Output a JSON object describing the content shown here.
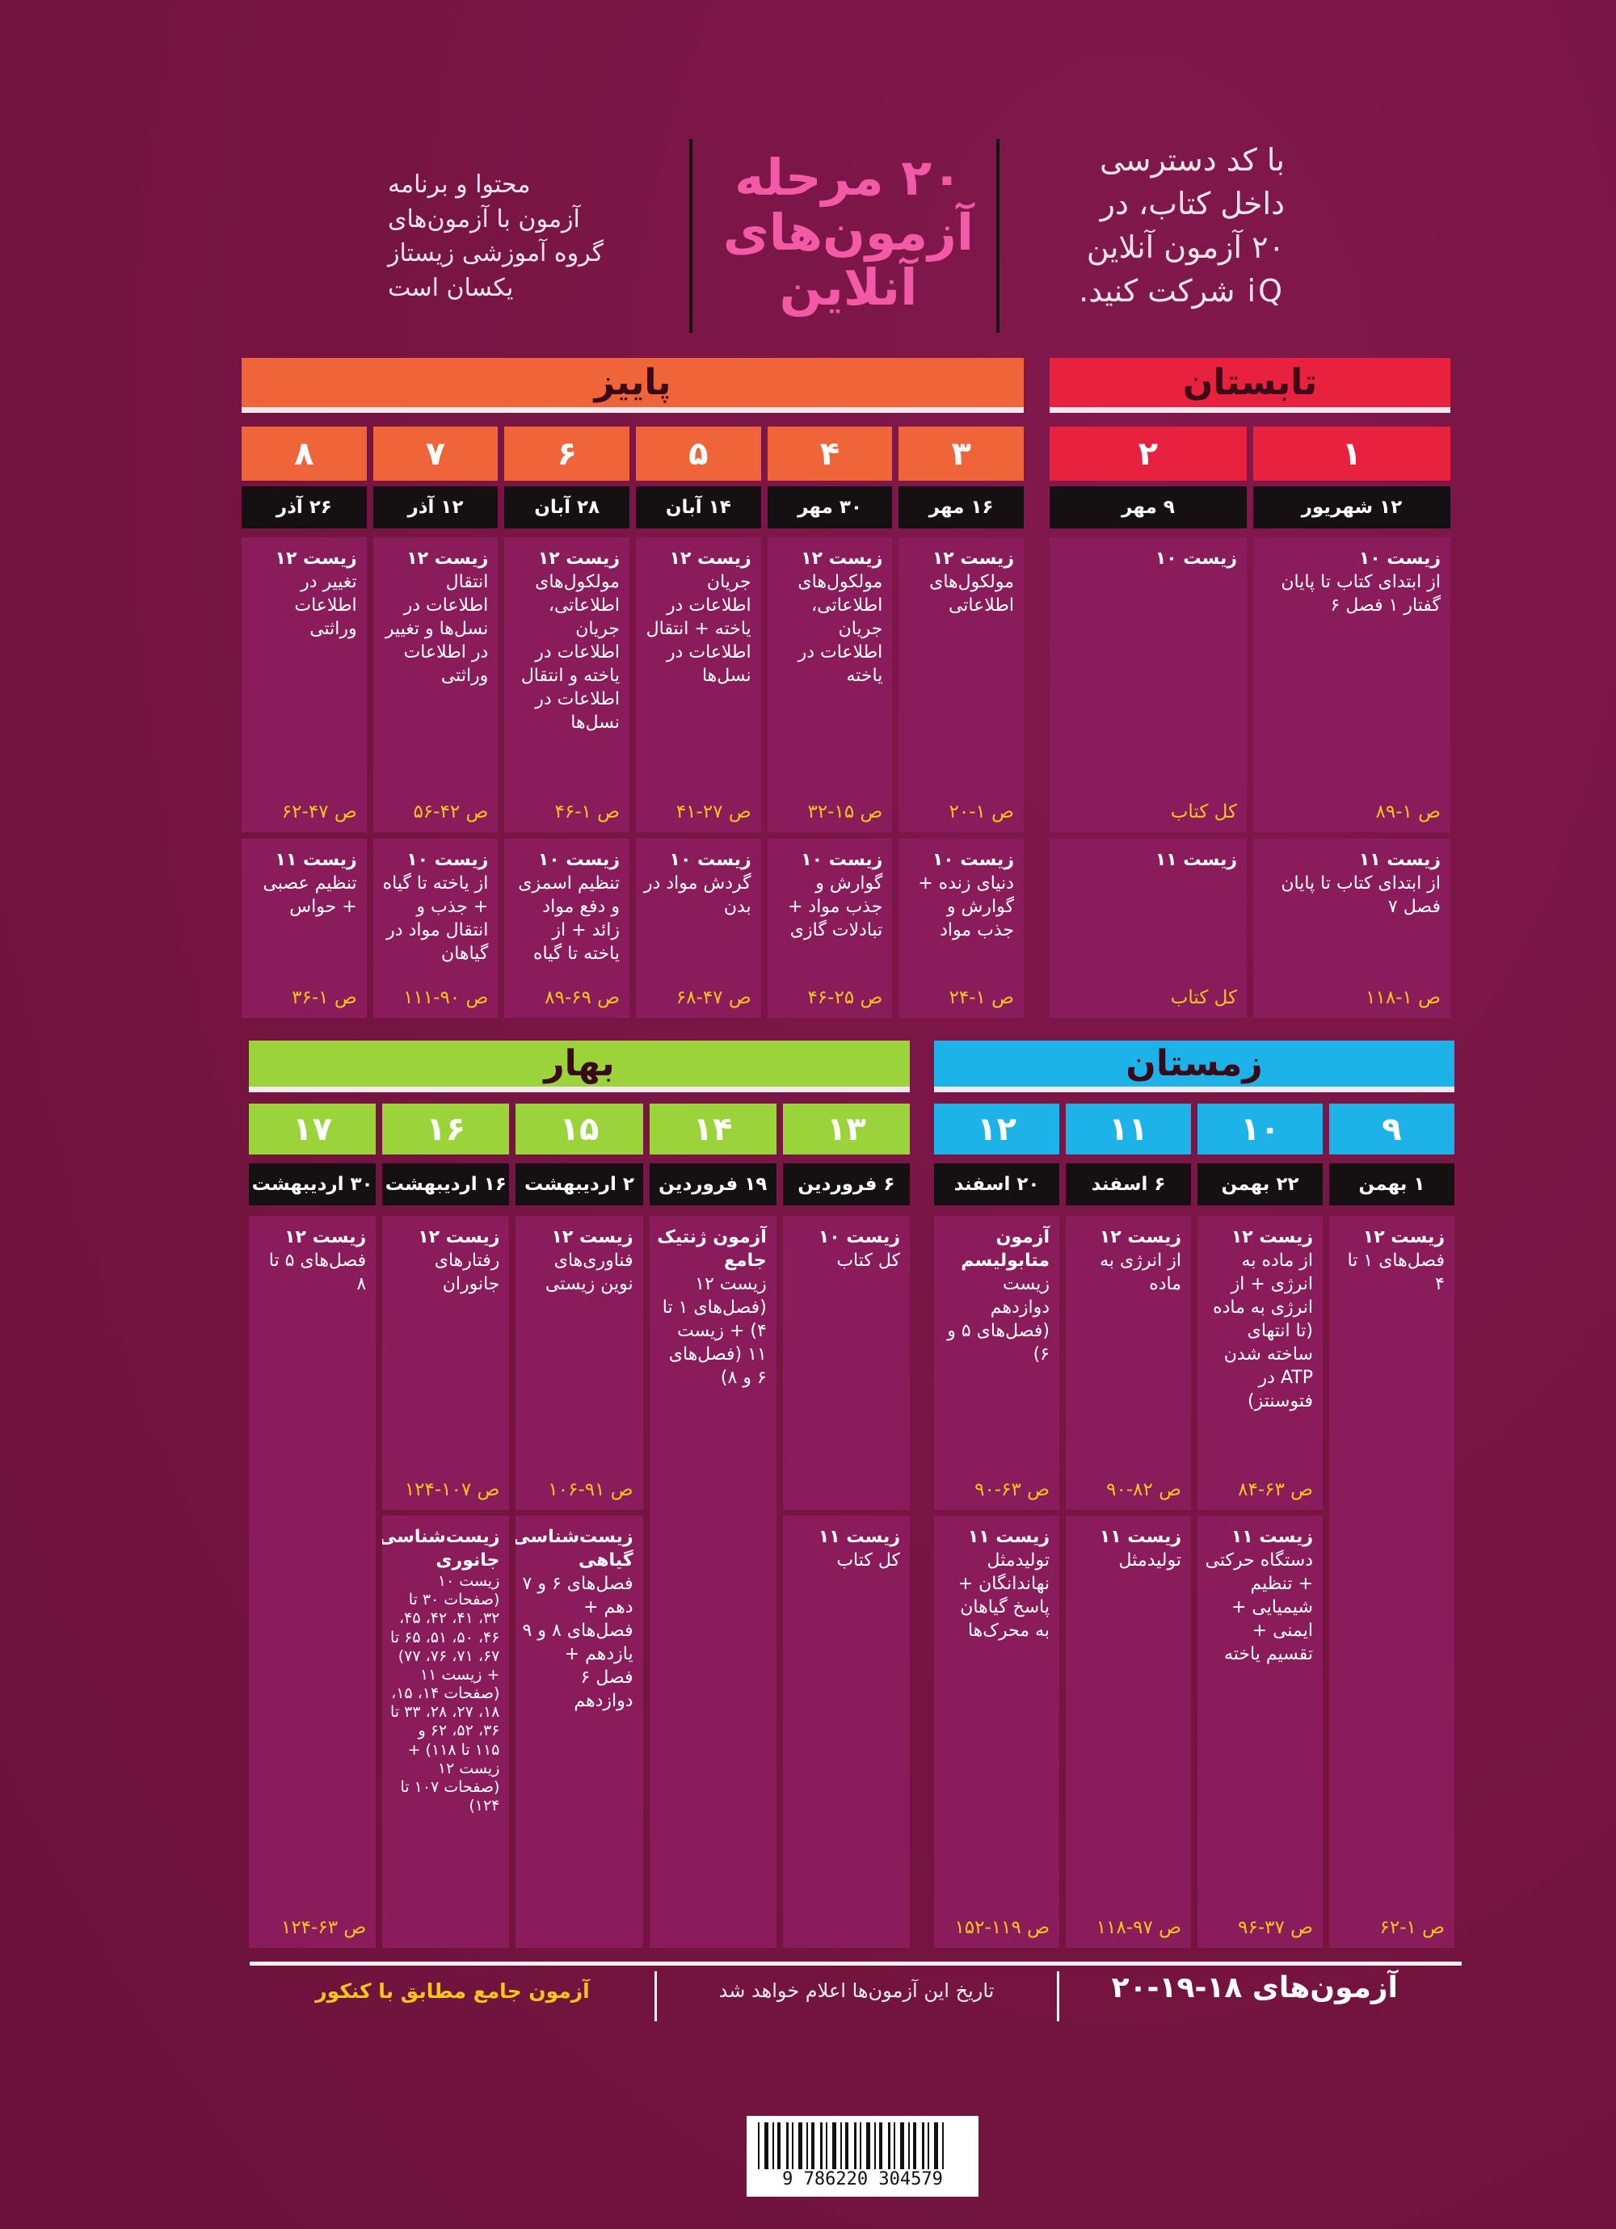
{
  "header": {
    "access_text": [
      "با کد دسترسی",
      "داخل کتاب، در",
      "۲۰ آزمون آنلاین",
      "iQ شرکت کنید."
    ],
    "title": [
      "۲۰ مرحله",
      "آزمون‌های",
      "آنلاین"
    ],
    "note": [
      "محتوا و برنامه",
      "آزمون با آزمون‌های",
      "گروه آموزشی زیستاز",
      "یکسان است"
    ]
  },
  "sections": [
    {
      "name": "تابستان",
      "color": "#e8213f",
      "columns": [
        {
          "number": "۱",
          "date": "۱۲ شهریور",
          "exams": [
            {
              "title": "زیست ۱۰",
              "body": "از ابتدای کتاب تا پایان گفتار ۱ فصل ۶",
              "pages": "ص ۱-۸۹"
            },
            {
              "title": "زیست ۱۱",
              "body": "از ابتدای کتاب تا پایان فصل ۷",
              "pages": "ص ۱-۱۱۸"
            }
          ]
        },
        {
          "number": "۲",
          "date": "۹ مهر",
          "exams": [
            {
              "title": "زیست ۱۰",
              "pages": "کل کتاب"
            },
            {
              "title": "زیست ۱۱",
              "pages": "کل کتاب"
            }
          ]
        }
      ]
    },
    {
      "name": "پاییز",
      "color": "#f0643a",
      "columns": [
        {
          "number": "۳",
          "date": "۱۶ مهر",
          "exams": [
            {
              "title": "زیست ۱۲",
              "body": "مولکول‌های اطلاعاتی",
              "pages": "ص ۱-۲۰"
            },
            {
              "title": "زیست ۱۰",
              "body": "دنیای زنده + گوارش و جذب مواد",
              "pages": "ص ۱-۲۴"
            }
          ]
        },
        {
          "number": "۴",
          "date": "۳۰ مهر",
          "exams": [
            {
              "title": "زیست ۱۲",
              "body": "مولکول‌های اطلاعاتی، جریان اطلاعات در یاخته",
              "pages": "ص ۱۵-۳۲"
            },
            {
              "title": "زیست ۱۰",
              "body": "گوارش و جذب مواد + تبادلات گازی",
              "pages": "ص ۲۵-۴۶"
            }
          ]
        },
        {
          "number": "۵",
          "date": "۱۴ آبان",
          "exams": [
            {
              "title": "زیست ۱۲",
              "body": "جریان اطلاعات در یاخته + انتقال اطلاعات در نسل‌ها",
              "pages": "ص ۲۷-۴۱"
            },
            {
              "title": "زیست ۱۰",
              "body": "گردش مواد در بدن",
              "pages": "ص ۴۷-۶۸"
            }
          ]
        },
        {
          "number": "۶",
          "date": "۲۸ آبان",
          "exams": [
            {
              "title": "زیست ۱۲",
              "body": "مولکول‌های اطلاعاتی، جریان اطلاعات در یاخته و انتقال اطلاعات در نسل‌ها",
              "pages": "ص ۱-۴۶"
            },
            {
              "title": "زیست ۱۰",
              "body": "تنظیم اسمزی و دفع مواد زائد + از یاخته تا گیاه",
              "pages": "ص ۶۹-۸۹"
            }
          ]
        },
        {
          "number": "۷",
          "date": "۱۲ آذر",
          "exams": [
            {
              "title": "زیست ۱۲",
              "body": "انتقال اطلاعات در نسل‌ها و تغییر در اطلاعات وراثتی",
              "pages": "ص ۴۲-۵۶"
            },
            {
              "title": "زیست ۱۰",
              "body": "از یاخته تا گیاه + جذب و انتقال مواد در گیاهان",
              "pages": "ص ۹۰-۱۱۱"
            }
          ]
        },
        {
          "number": "۸",
          "date": "۲۶ آذر",
          "exams": [
            {
              "title": "زیست ۱۲",
              "body": "تغییر در اطلاعات وراثتی",
              "pages": "ص ۴۷-۶۲"
            },
            {
              "title": "زیست ۱۱",
              "body": "تنظیم عصبی + حواس",
              "pages": "ص ۱-۳۶"
            }
          ]
        }
      ]
    },
    {
      "name": "زمستان",
      "color": "#1db3e8",
      "columns": [
        {
          "number": "۹",
          "date": "۱ بهمن",
          "exams": [
            {
              "title": "زیست ۱۲",
              "body": "فصل‌های ۱ تا ۴",
              "pages": "ص ۱-۶۲"
            }
          ]
        },
        {
          "number": "۱۰",
          "date": "۲۲ بهمن",
          "exams": [
            {
              "title": "زیست ۱۲",
              "body": "از ماده به انرژی + از انرژی به ماده (تا انتهای ساخته شدن ATP در فتوسنتز)",
              "pages": "ص ۶۳-۸۴"
            },
            {
              "title": "زیست ۱۱",
              "body": "دستگاه حرکتی + تنظیم شیمیایی + ایمنی + تقسیم یاخته",
              "pages": "ص ۳۷-۹۶"
            }
          ]
        },
        {
          "number": "۱۱",
          "date": "۶ اسفند",
          "exams": [
            {
              "title": "زیست ۱۲",
              "body": "از انرژی به ماده",
              "pages": "ص ۸۲-۹۰"
            },
            {
              "title": "زیست ۱۱",
              "body": "تولیدمثل",
              "pages": "ص ۹۷-۱۱۸"
            }
          ]
        },
        {
          "number": "۱۲",
          "date": "۲۰ اسفند",
          "exams": [
            {
              "title": "آزمون متابولیسم",
              "body": "زیست دوازدهم (فصل‌های ۵ و ۶)",
              "pages": "ص ۶۳-۹۰"
            },
            {
              "title": "زیست ۱۱",
              "body": "تولیدمثل نهاندانگان + پاسخ گیاهان به محرک‌ها",
              "pages": "ص ۱۱۹-۱۵۲"
            }
          ]
        }
      ]
    },
    {
      "name": "بهار",
      "color": "#9bd33b",
      "columns": [
        {
          "number": "۱۳",
          "date": "۶ فروردین",
          "exams": [
            {
              "title": "زیست ۱۰",
              "body": "کل کتاب"
            },
            {
              "title": "زیست ۱۱",
              "body": "کل کتاب"
            }
          ]
        },
        {
          "number": "۱۴",
          "date": "۱۹ فروردین",
          "exams": [
            {
              "title": "آزمون ژنتیک جامع",
              "body": "زیست ۱۲ (فصل‌های ۱ تا ۴) + زیست ۱۱ (فصل‌های ۶ و ۸)"
            }
          ]
        },
        {
          "number": "۱۵",
          "date": "۲ اردیبهشت",
          "exams": [
            {
              "title": "زیست ۱۲",
              "body": "فناوری‌های نوین زیستی",
              "pages": "ص ۹۱-۱۰۶"
            },
            {
              "title": "زیست‌شناسی گیاهی",
              "body": "فصل‌های ۶ و ۷ دهم + فصل‌های ۸ و ۹ یازدهم + فصل ۶ دوازدهم"
            }
          ]
        },
        {
          "number": "۱۶",
          "date": "۱۶ اردیبهشت",
          "exams": [
            {
              "title": "زیست ۱۲",
              "body": "رفتارهای جانوران",
              "pages": "ص ۱۰۷-۱۲۴"
            },
            {
              "title": "زیست‌شناسی جانوری",
              "body": "زیست ۱۰ (صفحات ۳۰ تا ۳۲، ۴۱، ۴۲، ۴۵، ۴۶، ۵۰، ۵۱، ۶۵ تا ۶۷، ۷۱، ۷۶، ۷۷) + زیست ۱۱ (صفحات ۱۴، ۱۵، ۱۸، ۲۷، ۲۸، ۳۳ تا ۳۶، ۵۲، ۶۲ و ۱۱۵ تا ۱۱۸) + زیست ۱۲ (صفحات ۱۰۷ تا ۱۲۴)"
            }
          ]
        },
        {
          "number": "۱۷",
          "date": "۳۰ اردیبهشت",
          "exams": [
            {
              "title": "زیست ۱۲",
              "body": "فصل‌های ۵ تا ۸",
              "pages": "ص ۶۳-۱۲۴"
            }
          ]
        }
      ]
    }
  ],
  "footer": {
    "title": "آزمون‌های ۱۸-۱۹-۲۰",
    "note": "تاریخ این آزمون‌ها اعلام خواهد شد",
    "exam": "آزمون جامع مطابق با کنکور"
  },
  "barcode": "9 786220 304579"
}
